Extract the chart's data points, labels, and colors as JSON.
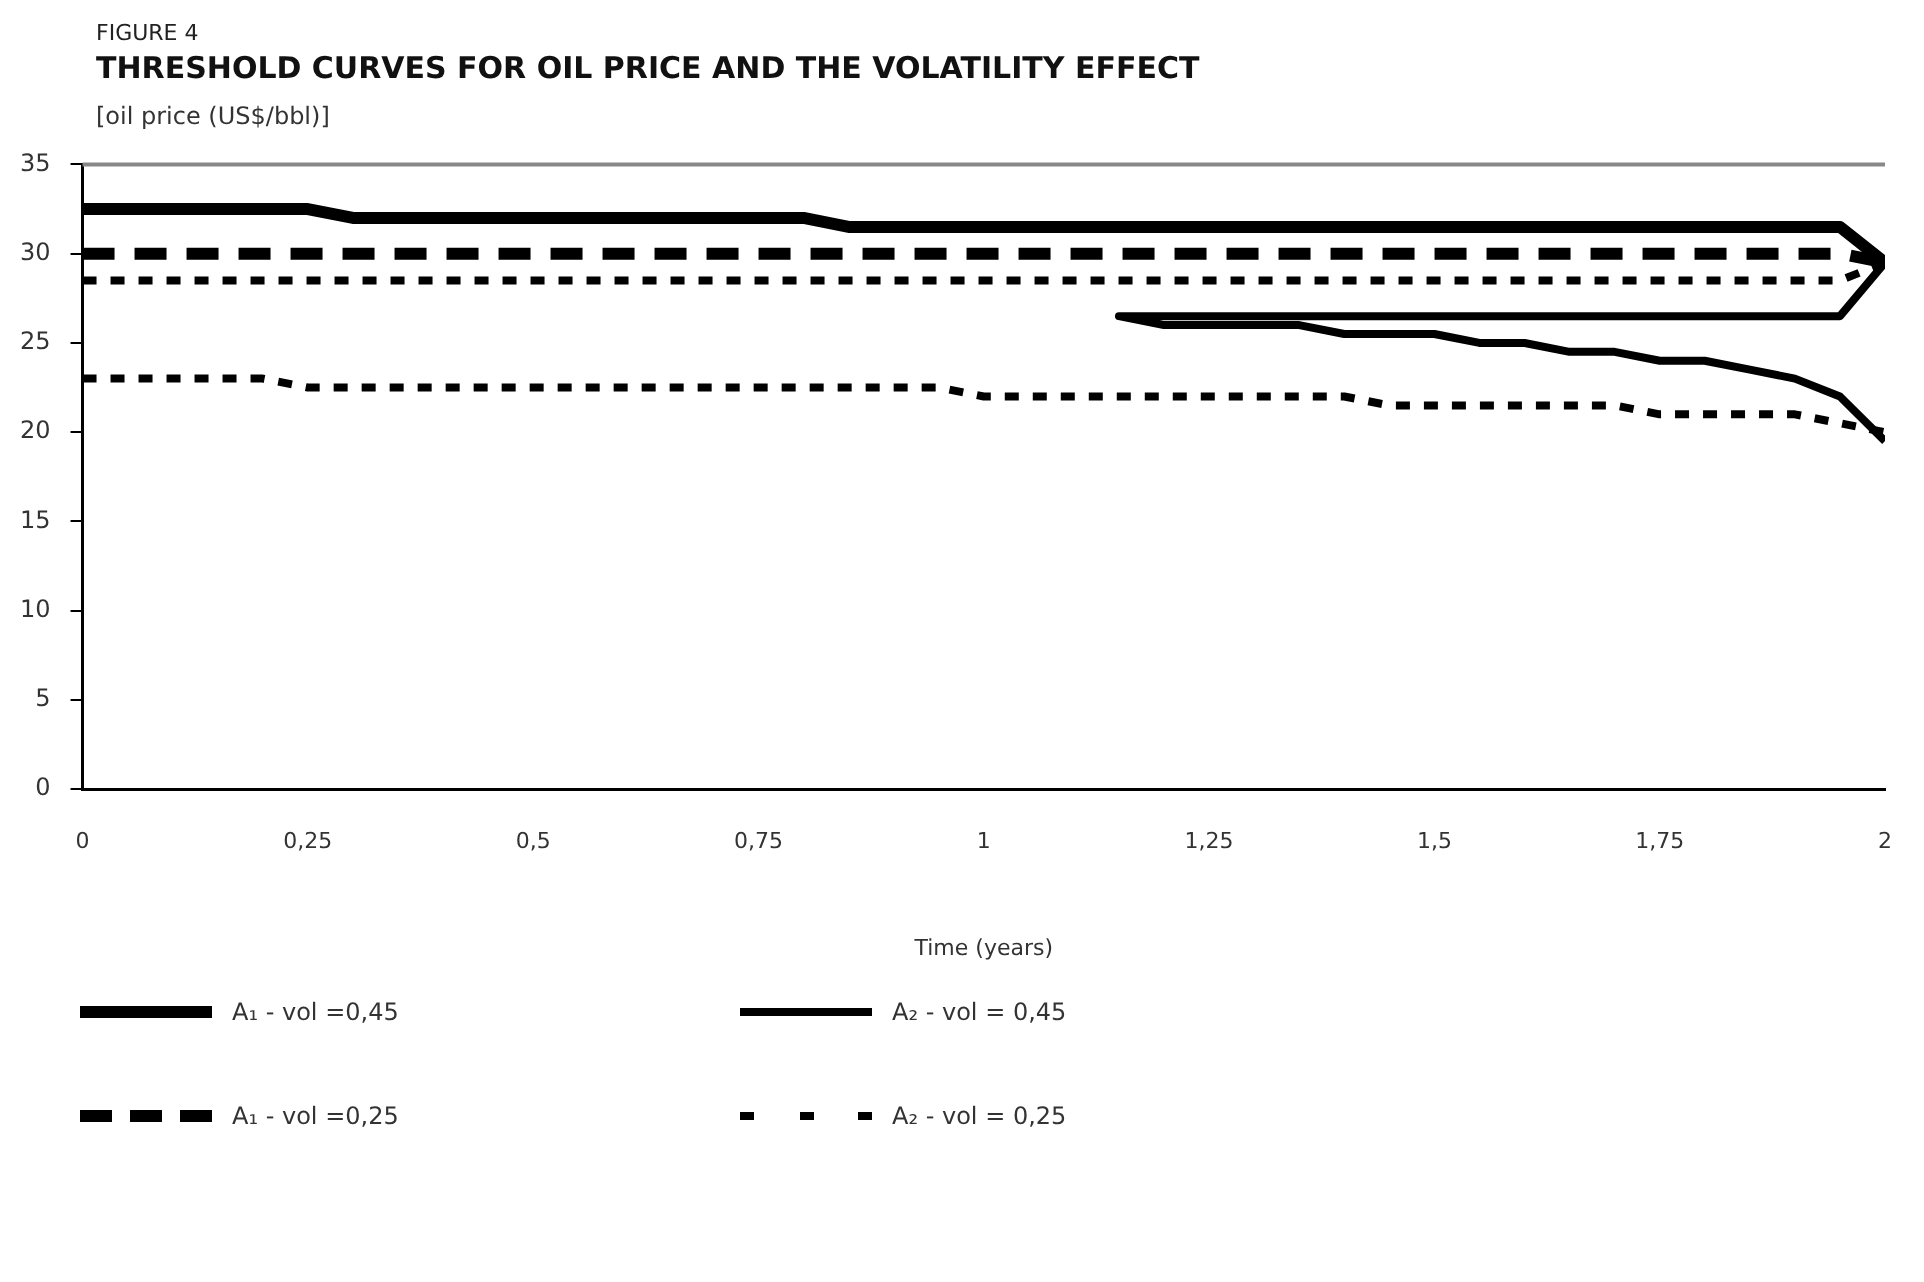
{
  "chart_data": {
    "type": "line",
    "title": "THRESHOLD CURVES FOR OIL PRICE AND THE VOLATILITY EFFECT",
    "annotations": [
      "FIGURE 4"
    ],
    "ylabel": "[oil price (US$/bbl)]",
    "xlabel": "Time (years)",
    "xlim": [
      0,
      2
    ],
    "xticks": [
      0,
      {
        "value": 0.25,
        "label": "0,25"
      },
      {
        "value": 0.5,
        "label": "0,5"
      },
      {
        "value": 0.75,
        "label": "0,75"
      },
      1,
      {
        "value": 1.25,
        "label": "1,25"
      },
      {
        "value": 1.5,
        "label": "1,5"
      },
      {
        "value": 1.75,
        "label": "1,75"
      },
      2
    ],
    "ylim": [
      0,
      35
    ],
    "yticks": [
      0,
      5,
      10,
      15,
      20,
      25,
      30,
      35
    ],
    "grid": false,
    "legend": "bottom",
    "marker": "none",
    "series": [
      {
        "name": "A₁ -  vol =0,45",
        "color": "#000000",
        "line_style": "solid",
        "x": [
          0,
          0.25,
          0.3,
          0.8,
          0.85,
          1.95,
          2
        ],
        "values": [
          32.5,
          32.5,
          32,
          32,
          31.5,
          31.5,
          29.5
        ]
      },
      {
        "name": "A₂ -  vol = 0,45",
        "color": "#000000",
        "line_style": "solid",
        "x": [
          2,
          1.95,
          1.15,
          1.2,
          1.35,
          1.4,
          1.5,
          1.55,
          1.6,
          1.65,
          1.7,
          1.75,
          1.8,
          1.85,
          1.9,
          1.95,
          2
        ],
        "values": [
          29.5,
          26.5,
          26.5,
          26,
          26,
          25.5,
          25.5,
          25,
          25,
          24.5,
          24.5,
          24,
          24,
          23.5,
          23,
          22,
          19.5
        ]
      },
      {
        "name": "A₁ -  vol =0,25",
        "color": "#000000",
        "line_style": "dashed",
        "x": [
          0,
          1.95,
          2
        ],
        "values": [
          30,
          30,
          29.5
        ]
      },
      {
        "name": "A₂ -  vol = 0,25",
        "color": "#000000",
        "line_style": "dashed",
        "x": [
          0,
          1.95,
          2,
          null,
          0,
          0.2,
          0.25,
          0.95,
          1,
          1.4,
          1.45,
          1.7,
          1.75,
          1.9,
          2
        ],
        "values": [
          28.5,
          28.5,
          29.5,
          null,
          23,
          23,
          22.5,
          22.5,
          22,
          22,
          21.5,
          21.5,
          21,
          21,
          20
        ]
      }
    ]
  }
}
